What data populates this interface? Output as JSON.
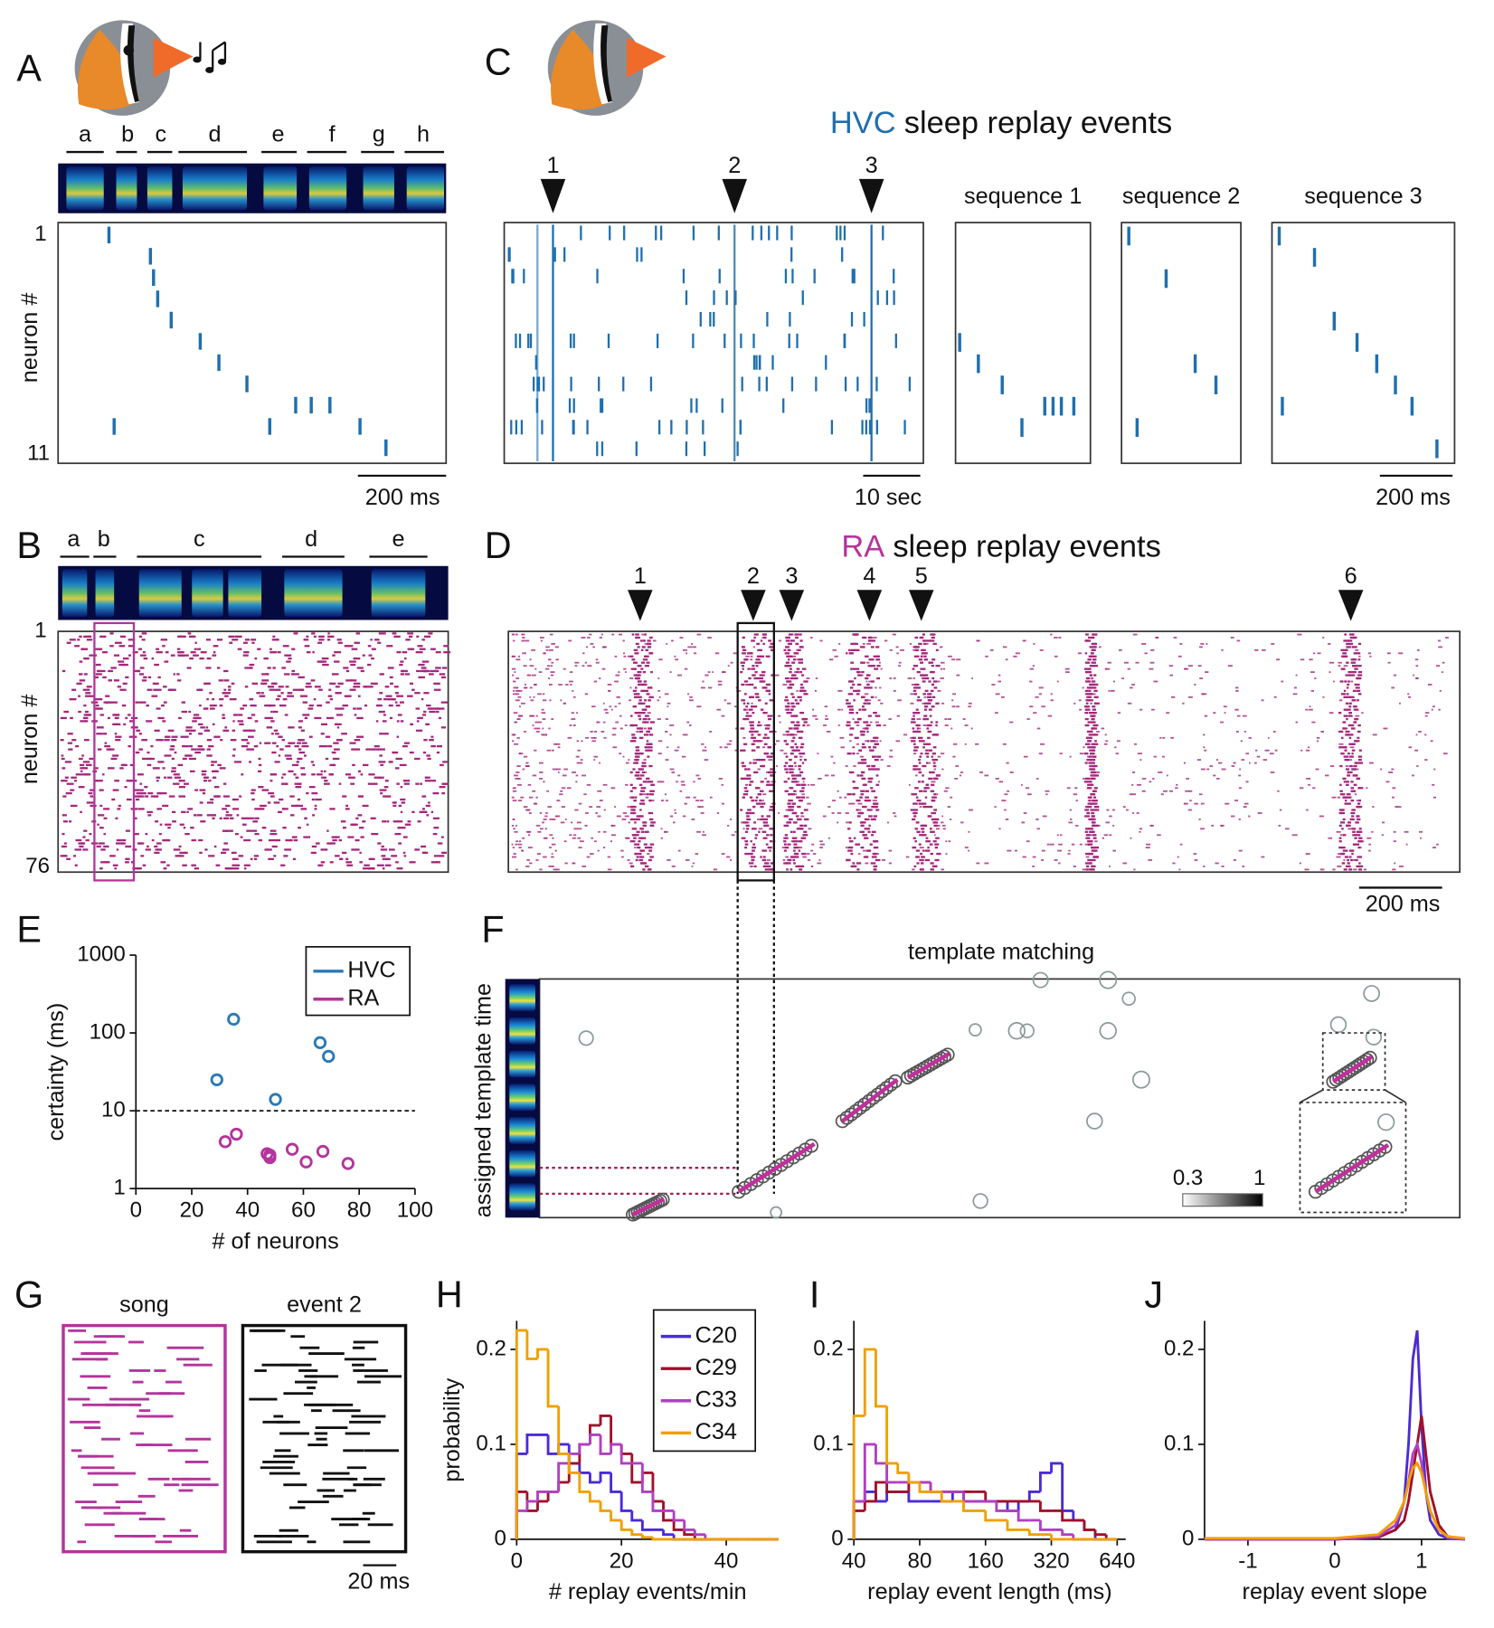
{
  "figure": {
    "panels": [
      "A",
      "B",
      "C",
      "D",
      "E",
      "F",
      "G",
      "H",
      "I",
      "J"
    ],
    "A": {
      "syllables": [
        "a",
        "b",
        "c",
        "d",
        "e",
        "f",
        "g",
        "h"
      ],
      "y_first": "1",
      "y_last": "11",
      "ylabel": "neuron #",
      "scalebar": "200 ms"
    },
    "B": {
      "syllables": [
        "a",
        "b",
        "c",
        "d",
        "e"
      ],
      "y_first": "1",
      "y_last": "76",
      "ylabel": "neuron #"
    },
    "C": {
      "title": [
        "HVC",
        "sleep replay events"
      ],
      "events": [
        "1",
        "2",
        "3"
      ],
      "sequences": [
        "sequence 1",
        "sequence 2",
        "sequence 3"
      ],
      "scalebar_long": "10 sec",
      "scalebar_short": "200 ms"
    },
    "D": {
      "title": [
        "RA",
        "sleep replay events"
      ],
      "events": [
        "1",
        "2",
        "3",
        "4",
        "5",
        "6"
      ],
      "scalebar": "200 ms"
    },
    "F": {
      "title": "template matching",
      "ylabel": "assigned template time",
      "colorbar": [
        "0.3",
        "1"
      ]
    },
    "G": {
      "titles": [
        "song",
        "event 2"
      ],
      "scalebar": "20 ms"
    }
  },
  "chart_data": [
    {
      "type": "scatter",
      "xlabel": "# of neurons",
      "ylabel": "certainty (ms)",
      "xlim": [
        0,
        100
      ],
      "xticks": [
        0,
        20,
        40,
        60,
        80,
        100
      ],
      "ylim": [
        1,
        1000
      ],
      "yticks": [
        1,
        10,
        100,
        1000
      ],
      "log_y": true,
      "threshold": 10,
      "legend": "upper right",
      "series": [
        {
          "name": "HVC",
          "color": "#2a7ab8",
          "x": [
            29,
            35,
            50,
            66,
            69
          ],
          "values": [
            25,
            150,
            14,
            75,
            50
          ]
        },
        {
          "name": "RA",
          "color": "#b4349c",
          "x": [
            32,
            36,
            47,
            48,
            48,
            56,
            61,
            67,
            76
          ],
          "values": [
            4,
            5,
            2.8,
            2.5,
            2.7,
            3.2,
            2.2,
            3,
            2.1
          ]
        }
      ]
    },
    {
      "type": "histogram",
      "xlabel": "# replay events/min",
      "ylabel": "probability",
      "xlim": [
        0,
        50
      ],
      "xticks": [
        0,
        20,
        40
      ],
      "ylim": [
        0,
        0.23
      ],
      "yticks": [
        0,
        0.1,
        0.2
      ],
      "legend": "upper right",
      "bins": [
        0,
        2,
        4,
        6,
        8,
        10,
        12,
        14,
        16,
        18,
        20,
        22,
        24,
        26,
        28,
        30,
        32,
        34,
        36,
        38,
        40,
        42,
        44,
        46,
        48,
        50
      ],
      "series": [
        {
          "name": "C20",
          "color": "#4b2bd6",
          "values": [
            0.09,
            0.11,
            0.11,
            0.09,
            0.1,
            0.08,
            0.07,
            0.06,
            0.07,
            0.05,
            0.03,
            0.02,
            0.01,
            0.01,
            0.005,
            0,
            0,
            0,
            0,
            0,
            0,
            0,
            0,
            0,
            0
          ]
        },
        {
          "name": "C29",
          "color": "#a0102a",
          "values": [
            0.05,
            0.03,
            0.04,
            0.05,
            0.06,
            0.08,
            0.1,
            0.12,
            0.13,
            0.1,
            0.09,
            0.06,
            0.07,
            0.04,
            0.02,
            0.01,
            0.005,
            0,
            0,
            0,
            0,
            0,
            0,
            0,
            0
          ]
        },
        {
          "name": "C33",
          "color": "#b040c0",
          "values": [
            0.03,
            0.04,
            0.05,
            0.05,
            0.08,
            0.09,
            0.1,
            0.11,
            0.09,
            0.1,
            0.08,
            0.08,
            0.05,
            0.03,
            0.03,
            0.02,
            0.01,
            0.005,
            0,
            0,
            0,
            0,
            0,
            0,
            0
          ]
        },
        {
          "name": "C34",
          "color": "#f0a000",
          "values": [
            0.22,
            0.19,
            0.2,
            0.14,
            0.09,
            0.07,
            0.05,
            0.04,
            0.03,
            0.02,
            0.01,
            0.005,
            0.002,
            0,
            0,
            0,
            0,
            0,
            0,
            0,
            0,
            0,
            0,
            0,
            0
          ]
        }
      ]
    },
    {
      "type": "histogram",
      "xlabel": "replay event length (ms)",
      "log_x": true,
      "xlim": [
        40,
        700
      ],
      "xticks": [
        40,
        80,
        160,
        320,
        640
      ],
      "ylim": [
        0,
        0.23
      ],
      "yticks": [
        0,
        0.1,
        0.2
      ],
      "bins": [
        40,
        44.9,
        50.4,
        56.6,
        63.5,
        71.3,
        80,
        89.8,
        100.8,
        113.1,
        127,
        142.5,
        160,
        179.6,
        201.6,
        226.3,
        254,
        285.1,
        320,
        359.2,
        403.2,
        452.5,
        508,
        570.2,
        640
      ],
      "series": [
        {
          "name": "C20",
          "color": "#4b2bd6",
          "values": [
            0.04,
            0.05,
            0.04,
            0.05,
            0.05,
            0.04,
            0.04,
            0.04,
            0.04,
            0.05,
            0.04,
            0.04,
            0.04,
            0.04,
            0.03,
            0.04,
            0.05,
            0.07,
            0.08,
            0.03,
            0.02,
            0.01,
            0,
            0
          ]
        },
        {
          "name": "C29",
          "color": "#a0102a",
          "values": [
            0.03,
            0.04,
            0.06,
            0.05,
            0.05,
            0.06,
            0.06,
            0.05,
            0.05,
            0.05,
            0.05,
            0.05,
            0.04,
            0.04,
            0.04,
            0.04,
            0.04,
            0.03,
            0.03,
            0.02,
            0.02,
            0.01,
            0.005,
            0
          ]
        },
        {
          "name": "C33",
          "color": "#b040c0",
          "values": [
            0.04,
            0.1,
            0.08,
            0.06,
            0.06,
            0.06,
            0.06,
            0.05,
            0.05,
            0.05,
            0.04,
            0.04,
            0.04,
            0.03,
            0.03,
            0.02,
            0.02,
            0.01,
            0.01,
            0.005,
            0,
            0,
            0,
            0
          ]
        },
        {
          "name": "C34",
          "color": "#f0a000",
          "values": [
            0.13,
            0.2,
            0.14,
            0.08,
            0.07,
            0.06,
            0.05,
            0.05,
            0.04,
            0.04,
            0.03,
            0.03,
            0.02,
            0.02,
            0.01,
            0.01,
            0.005,
            0.005,
            0,
            0,
            0,
            0,
            0,
            0
          ]
        }
      ]
    },
    {
      "type": "line",
      "xlabel": "replay event slope",
      "xlim": [
        -1.5,
        1.5
      ],
      "xticks": [
        -1,
        0,
        1
      ],
      "ylim": [
        0,
        0.23
      ],
      "yticks": [
        0,
        0.1,
        0.2
      ],
      "x": [
        -1.5,
        -1,
        0,
        0.5,
        0.7,
        0.8,
        0.85,
        0.9,
        0.95,
        1,
        1.05,
        1.1,
        1.2,
        1.3,
        1.5
      ],
      "series": [
        {
          "name": "C20",
          "color": "#4b2bd6",
          "values": [
            0,
            0,
            0,
            0.002,
            0.01,
            0.04,
            0.1,
            0.19,
            0.22,
            0.12,
            0.05,
            0.02,
            0.005,
            0.001,
            0
          ]
        },
        {
          "name": "C29",
          "color": "#a0102a",
          "values": [
            0,
            0,
            0,
            0.002,
            0.01,
            0.02,
            0.04,
            0.07,
            0.1,
            0.13,
            0.09,
            0.05,
            0.015,
            0.003,
            0
          ]
        },
        {
          "name": "C33",
          "color": "#b040c0",
          "values": [
            0,
            0,
            0,
            0.003,
            0.015,
            0.04,
            0.06,
            0.09,
            0.1,
            0.08,
            0.05,
            0.03,
            0.01,
            0.002,
            0
          ]
        },
        {
          "name": "C34",
          "color": "#f0a000",
          "values": [
            0.001,
            0.001,
            0.001,
            0.005,
            0.02,
            0.04,
            0.06,
            0.075,
            0.08,
            0.07,
            0.05,
            0.03,
            0.01,
            0.003,
            0.001
          ]
        }
      ]
    }
  ]
}
